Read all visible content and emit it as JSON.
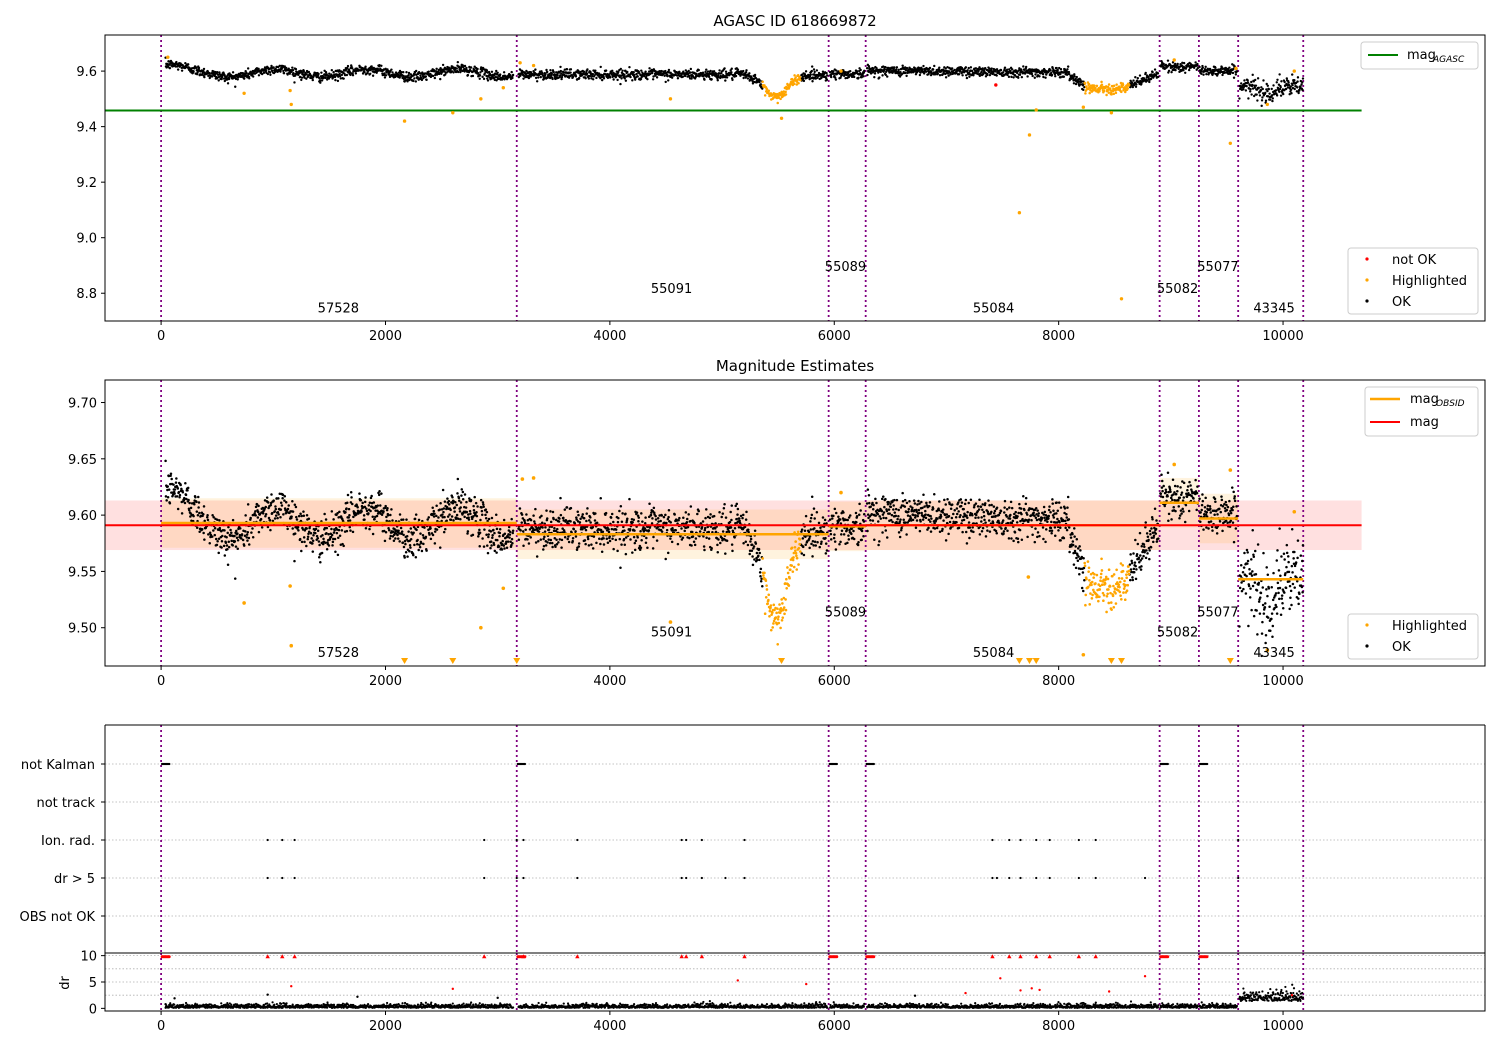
{
  "figure": {
    "width": 1500,
    "height": 1050,
    "colors": {
      "ok": "#000000",
      "highlighted": "#ffa500",
      "not_ok": "#ff0000",
      "agasc_line": "#008000",
      "obs_mean": "#ffa500",
      "global_mean": "#ff0000",
      "obs_boundary": "#800080",
      "grid": "#b0b0b0"
    }
  },
  "chart_data": [
    {
      "id": "agasc-panel",
      "type": "scatter",
      "title": "AGASC ID 618669872",
      "xlim": [
        -500,
        11800
      ],
      "ylim": [
        8.7,
        9.73
      ],
      "xticks": [
        0,
        2000,
        4000,
        6000,
        8000,
        10000
      ],
      "yticks": [
        8.8,
        9.0,
        9.2,
        9.4,
        9.6
      ],
      "ytick_labels": [
        "8.8",
        "9.0",
        "9.2",
        "9.4",
        "9.6"
      ],
      "hline": {
        "y": 9.458,
        "x_range": [
          -500,
          10700
        ]
      },
      "legend_top": {
        "label": "mag",
        "subscript": "AGASC",
        "position": "upper-right"
      },
      "legend_bottom": {
        "labels": [
          "not OK",
          "Highlighted",
          "OK"
        ],
        "position": "lower-right"
      },
      "obs_labels": [
        {
          "text": "57528",
          "x": 1580,
          "y": 8.73
        },
        {
          "text": "55091",
          "x": 4550,
          "y": 8.8
        },
        {
          "text": "55089",
          "x": 6100,
          "y": 8.88
        },
        {
          "text": "55084",
          "x": 7420,
          "y": 8.73
        },
        {
          "text": "55082",
          "x": 9060,
          "y": 8.8
        },
        {
          "text": "55077",
          "x": 9420,
          "y": 8.88
        },
        {
          "text": "43345",
          "x": 9920,
          "y": 8.73
        }
      ],
      "outliers_highlighted": [
        [
          60,
          9.65
        ],
        [
          740,
          9.52
        ],
        [
          1150,
          9.53
        ],
        [
          1160,
          9.48
        ],
        [
          2170,
          9.42
        ],
        [
          2600,
          9.45
        ],
        [
          2850,
          9.5
        ],
        [
          3050,
          9.54
        ],
        [
          3200,
          9.63
        ],
        [
          3320,
          9.62
        ],
        [
          4540,
          9.5
        ],
        [
          5530,
          9.43
        ],
        [
          6060,
          9.6
        ],
        [
          7650,
          9.09
        ],
        [
          7740,
          9.37
        ],
        [
          7800,
          9.46
        ],
        [
          8220,
          9.47
        ],
        [
          8470,
          9.45
        ],
        [
          8560,
          8.78
        ],
        [
          9030,
          9.64
        ],
        [
          9530,
          9.34
        ],
        [
          9580,
          9.61
        ],
        [
          9860,
          9.48
        ],
        [
          10100,
          9.6
        ]
      ],
      "outliers_not_ok": [
        [
          7440,
          9.55
        ]
      ]
    },
    {
      "id": "magnitude-panel",
      "type": "scatter",
      "title": "Magnitude Estimates",
      "xlim": [
        -500,
        11800
      ],
      "ylim": [
        9.466,
        9.72
      ],
      "xticks": [
        0,
        2000,
        4000,
        6000,
        8000,
        10000
      ],
      "yticks": [
        9.5,
        9.55,
        9.6,
        9.65,
        9.7
      ],
      "ytick_labels": [
        "9.50",
        "9.55",
        "9.60",
        "9.65",
        "9.70"
      ],
      "global_mean": 9.591,
      "global_band": [
        9.569,
        9.613
      ],
      "legend_top": {
        "labels": [
          "mag",
          "mag"
        ],
        "subscripts": [
          "OBSID",
          ""
        ],
        "position": "upper-right"
      },
      "legend_bottom": {
        "labels": [
          "Highlighted",
          "OK"
        ],
        "position": "lower-right"
      },
      "obs_labels": [
        {
          "text": "57528",
          "x": 1580,
          "y": 9.474
        },
        {
          "text": "55091",
          "x": 4550,
          "y": 9.492
        },
        {
          "text": "55089",
          "x": 6100,
          "y": 9.51
        },
        {
          "text": "55084",
          "x": 7420,
          "y": 9.474
        },
        {
          "text": "55082",
          "x": 9060,
          "y": 9.492
        },
        {
          "text": "55077",
          "x": 9420,
          "y": 9.51
        },
        {
          "text": "43345",
          "x": 9920,
          "y": 9.474
        }
      ],
      "offscale_markers_x": [
        2170,
        2600,
        3170,
        5530,
        7650,
        7740,
        7800,
        8470,
        8560,
        9530
      ],
      "outliers_highlighted": [
        [
          740,
          9.522
        ],
        [
          1150,
          9.537
        ],
        [
          1160,
          9.484
        ],
        [
          2850,
          9.5
        ],
        [
          3050,
          9.535
        ],
        [
          3220,
          9.632
        ],
        [
          3320,
          9.633
        ],
        [
          4540,
          9.505
        ],
        [
          6060,
          9.62
        ],
        [
          7730,
          9.545
        ],
        [
          8220,
          9.476
        ],
        [
          9030,
          9.645
        ],
        [
          9530,
          9.64
        ],
        [
          9860,
          9.48
        ],
        [
          10100,
          9.603
        ]
      ]
    },
    {
      "id": "flags-panel",
      "type": "scatter",
      "xlim": [
        -500,
        11800
      ],
      "categories": [
        "not Kalman",
        "not track",
        "Ion. rad.",
        "dr > 5",
        "OBS not OK"
      ],
      "ion_rad_x": [
        950,
        1080,
        1190,
        2880,
        3170,
        3230,
        3710,
        4640,
        4680,
        4820,
        5200,
        7410,
        7560,
        7660,
        7800,
        7920,
        8180,
        8330,
        9600
      ],
      "dr5_x": [
        950,
        1080,
        1190,
        2880,
        3170,
        3230,
        3710,
        4640,
        4680,
        4820,
        5030,
        5200,
        7410,
        7450,
        7560,
        7660,
        7800,
        7920,
        8180,
        8330,
        8770,
        9600
      ]
    },
    {
      "id": "dr-panel",
      "type": "scatter",
      "ylabel": "dr",
      "xlim": [
        -500,
        11800
      ],
      "ylim": [
        -0.5,
        10.5
      ],
      "xticks": [
        0,
        2000,
        4000,
        6000,
        8000,
        10000
      ],
      "yticks": [
        0,
        5,
        10
      ],
      "ytick_labels": [
        "0",
        "5",
        "10"
      ],
      "clipped_x": [
        950,
        1080,
        1190,
        2880,
        3230,
        3710,
        4640,
        4680,
        4820,
        5200,
        7410,
        7560,
        7660,
        7800,
        7920,
        8180,
        8330
      ],
      "red_points": [
        [
          1160,
          4.2
        ],
        [
          2600,
          3.7
        ],
        [
          5140,
          5.3
        ],
        [
          5750,
          4.6
        ],
        [
          7170,
          2.9
        ],
        [
          7480,
          5.7
        ],
        [
          7660,
          3.4
        ],
        [
          7760,
          3.8
        ],
        [
          7830,
          3.5
        ],
        [
          8450,
          3.2
        ],
        [
          8770,
          6.1
        ],
        [
          10080,
          2.5
        ]
      ],
      "black_points": [
        [
          40,
          0.8
        ],
        [
          120,
          1.9
        ],
        [
          950,
          2.6
        ],
        [
          1750,
          2.2
        ],
        [
          3000,
          2.0
        ],
        [
          6720,
          2.4
        ]
      ]
    }
  ],
  "observations": [
    {
      "obsid": "57528",
      "start": 0,
      "end": 3170,
      "mag": 9.593
    },
    {
      "obsid": "55091",
      "start": 3170,
      "end": 5950,
      "mag": 9.583
    },
    {
      "obsid": "55089",
      "start": 5950,
      "end": 6280,
      "mag": 9.59
    },
    {
      "obsid": "55084",
      "start": 6280,
      "end": 8900,
      "mag": 9.591
    },
    {
      "obsid": "55082",
      "start": 8900,
      "end": 9250,
      "mag": 9.611
    },
    {
      "obsid": "55077",
      "start": 9250,
      "end": 9600,
      "mag": 9.597
    },
    {
      "obsid": "43345",
      "start": 9600,
      "end": 10180,
      "mag": 9.543
    }
  ]
}
